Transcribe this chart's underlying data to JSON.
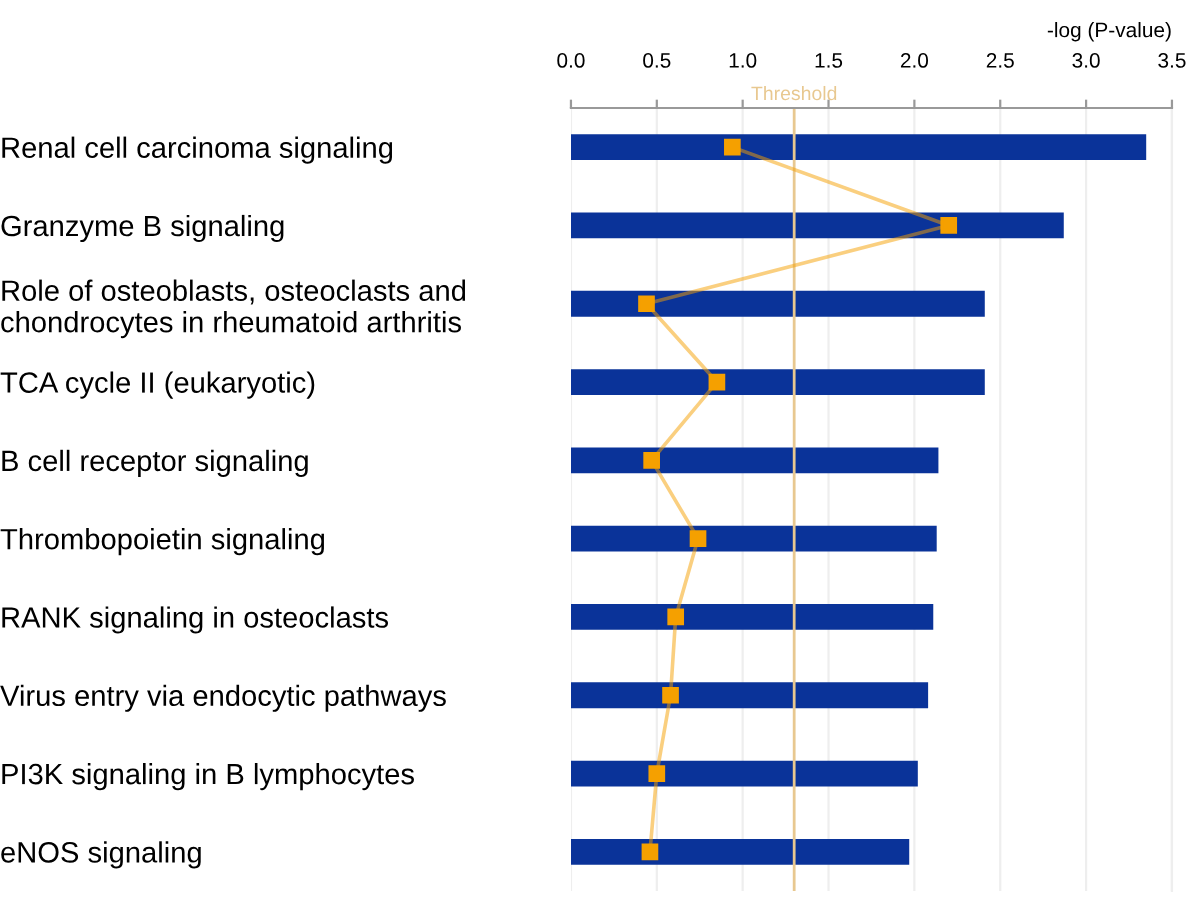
{
  "chart_data": {
    "type": "bar",
    "orientation": "horizontal",
    "xlabel": "-log (P-value)",
    "categories": [
      "Renal cell carcinoma signaling",
      "Granzyme B signaling",
      "Role of osteoblasts, osteoclasts and\nchondrocytes in rheumatoid arthritis",
      "TCA cycle II (eukaryotic)",
      "B cell receptor signaling",
      "Thrombopoietin signaling",
      "RANK signaling in osteoclasts",
      "Virus entry via endocytic pathways",
      "PI3K signaling in B lymphocytes",
      "eNOS signaling"
    ],
    "series": [
      {
        "color": "#0a3399",
        "values": [
          3.35,
          2.87,
          2.41,
          2.41,
          2.14,
          2.13,
          2.11,
          2.08,
          2.02,
          1.97
        ]
      },
      {
        "type": "line",
        "color": "#f5a000",
        "marker": "square",
        "line_style": "solid",
        "values": [
          0.94,
          2.2,
          0.44,
          0.85,
          0.47,
          0.74,
          0.61,
          0.58,
          0.5,
          0.46
        ]
      }
    ],
    "xlim": [
      0,
      3.5
    ],
    "xticks": [
      {
        "value": 0,
        "label": "0.0"
      },
      {
        "value": 0.5,
        "label": "0.5"
      },
      {
        "value": 1,
        "label": "1.0"
      },
      {
        "value": 1.5,
        "label": "1.5"
      },
      {
        "value": 2,
        "label": "2.0"
      },
      {
        "value": 2.5,
        "label": "2.5"
      },
      {
        "value": 3,
        "label": "3.0"
      },
      {
        "value": 3.5,
        "label": "3.5"
      }
    ],
    "grid": "x",
    "ref_lines": [
      {
        "axis": "x",
        "value": 1.3,
        "label": "Threshold",
        "color": "#e8c890"
      }
    ]
  }
}
